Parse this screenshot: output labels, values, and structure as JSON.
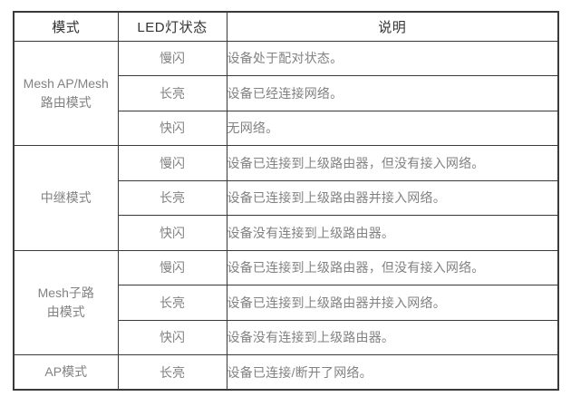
{
  "page": {
    "background_color": "#ffffff"
  },
  "table": {
    "border_color": "#3a3a3a",
    "header_text_color": "#333333",
    "body_text_color": "#828282",
    "headers": [
      "模式",
      "LED灯状态",
      "说明"
    ],
    "groups": [
      {
        "mode": "Mesh AP/Mesh\n路由模式",
        "rows": [
          {
            "led": "慢闪",
            "desc": "设备处于配对状态。"
          },
          {
            "led": "长亮",
            "desc": "设备已经连接网络。"
          },
          {
            "led": "快闪",
            "desc": "无网络。"
          }
        ]
      },
      {
        "mode": "中继模式",
        "rows": [
          {
            "led": "慢闪",
            "desc": "设备已连接到上级路由器，但没有接入网络。"
          },
          {
            "led": "长亮",
            "desc": "设备已连接到上级路由器并接入网络。"
          },
          {
            "led": "快闪",
            "desc": "设备没有连接到上级路由器。"
          }
        ]
      },
      {
        "mode": "Mesh子路\n由模式",
        "rows": [
          {
            "led": "慢闪",
            "desc": "设备已连接到上级路由器，但没有接入网络。"
          },
          {
            "led": "长亮",
            "desc": "设备已连接到上级路由器并接入网络。"
          },
          {
            "led": "快闪",
            "desc": "设备没有连接到上级路由器。"
          }
        ]
      },
      {
        "mode": "AP模式",
        "rows": [
          {
            "led": "长亮",
            "desc": "设备已连接/断开了网络。"
          }
        ]
      }
    ]
  }
}
